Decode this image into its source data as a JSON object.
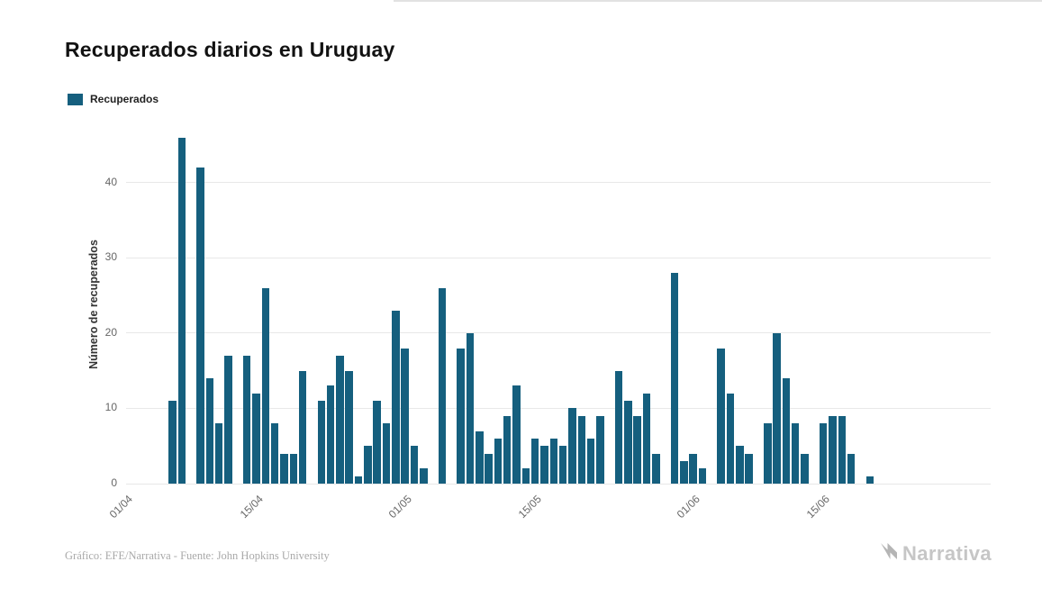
{
  "title": "Recuperados diarios en Uruguay",
  "legend": {
    "label": "Recuperados"
  },
  "credits": "Gráfico: EFE/Narrativa - Fuente: John Hopkins University",
  "brand": "Narrativa",
  "colors": {
    "bar": "#155f7e",
    "grid": "#e8e8e8",
    "tick_text": "#666666"
  },
  "chart_data": {
    "type": "bar",
    "title": "Recuperados diarios en Uruguay",
    "xlabel": "",
    "ylabel": "Número de recuperados",
    "ylim": [
      0,
      47.5
    ],
    "yticks": [
      0,
      10,
      20,
      30,
      40
    ],
    "xticks": [
      {
        "label": "01/04",
        "day": 0
      },
      {
        "label": "15/04",
        "day": 14
      },
      {
        "label": "01/05",
        "day": 30
      },
      {
        "label": "15/05",
        "day": 44
      },
      {
        "label": "01/06",
        "day": 61
      },
      {
        "label": "15/06",
        "day": 75
      }
    ],
    "total_days": 93,
    "start_day": 5,
    "grid": "horizontal",
    "legend_position": "top-left",
    "series": [
      {
        "name": "Recuperados",
        "dates": [
          "06/04",
          "07/04",
          "08/04",
          "09/04",
          "10/04",
          "11/04",
          "12/04",
          "13/04",
          "14/04",
          "15/04",
          "16/04",
          "17/04",
          "18/04",
          "19/04",
          "20/04",
          "21/04",
          "22/04",
          "23/04",
          "24/04",
          "25/04",
          "26/04",
          "27/04",
          "28/04",
          "29/04",
          "30/04",
          "01/05",
          "02/05",
          "03/05",
          "04/05",
          "05/05",
          "06/05",
          "07/05",
          "08/05",
          "09/05",
          "10/05",
          "11/05",
          "12/05",
          "13/05",
          "14/05",
          "15/05",
          "16/05",
          "17/05",
          "18/05",
          "19/05",
          "20/05",
          "21/05",
          "22/05",
          "23/05",
          "24/05",
          "25/05",
          "26/05",
          "27/05",
          "28/05",
          "29/05",
          "30/05",
          "31/05",
          "01/06",
          "02/06",
          "03/06",
          "04/06",
          "05/06",
          "06/06",
          "07/06",
          "08/06",
          "09/06",
          "10/06",
          "11/06",
          "12/06",
          "13/06",
          "14/06",
          "15/06",
          "16/06",
          "17/06",
          "18/06",
          "19/06",
          "20/06",
          "21/06"
        ],
        "values": [
          11,
          46,
          0,
          42,
          14,
          8,
          17,
          0,
          17,
          12,
          26,
          8,
          4,
          4,
          15,
          0,
          11,
          13,
          17,
          15,
          1,
          5,
          11,
          8,
          23,
          18,
          5,
          2,
          0,
          26,
          0,
          18,
          20,
          7,
          4,
          6,
          9,
          13,
          2,
          6,
          5,
          6,
          5,
          10,
          9,
          6,
          9,
          0,
          15,
          11,
          9,
          12,
          4,
          0,
          28,
          3,
          4,
          2,
          0,
          18,
          12,
          5,
          4,
          0,
          8,
          20,
          14,
          8,
          4,
          0,
          8,
          9,
          9,
          4,
          0,
          1,
          0
        ]
      }
    ]
  }
}
